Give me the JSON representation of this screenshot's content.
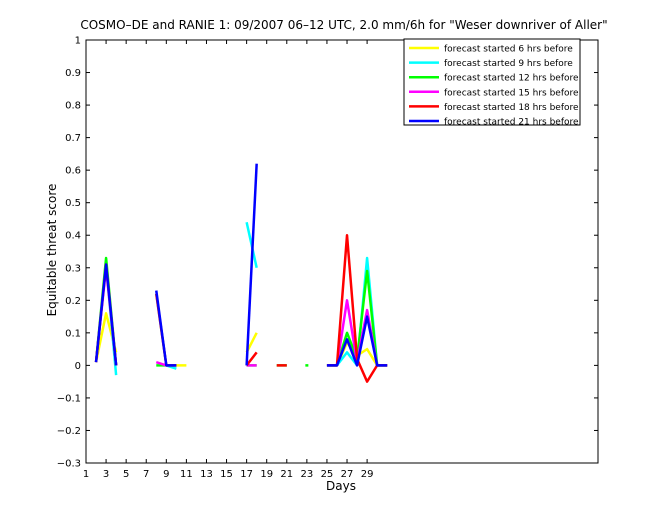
{
  "chart_data": {
    "type": "line",
    "title": "COSMO–DE and RANIE 1: 09/2007 06–12 UTC, 2.0 mm/6h for \"Weser downriver of Aller\"",
    "xlabel": "Days",
    "ylabel": "Equitable threat score",
    "xlim": [
      1,
      52
    ],
    "ylim": [
      -0.3,
      1
    ],
    "xticks": [
      1,
      3,
      5,
      7,
      9,
      11,
      13,
      15,
      17,
      19,
      21,
      23,
      25,
      27,
      29
    ],
    "xtick_labels": [
      "1",
      "3",
      "5",
      "7",
      "9",
      "11",
      "13",
      "15",
      "17",
      "19",
      "21",
      "23",
      "25",
      "27",
      "29"
    ],
    "yticks": [
      -0.3,
      -0.2,
      -0.1,
      0,
      0.1,
      0.2,
      0.3,
      0.4,
      0.5,
      0.6,
      0.7,
      0.8,
      0.9,
      1
    ],
    "ytick_labels": [
      "−0.3",
      "−0.2",
      "−0.1",
      "0",
      "0.1",
      "0.2",
      "0.3",
      "0.4",
      "0.5",
      "0.6",
      "0.7",
      "0.8",
      "0.9",
      "1"
    ],
    "grid": false,
    "legend_position": "top-right",
    "series": [
      {
        "name": "forecast started 6 hrs before",
        "color": "#ffff00",
        "segments": [
          [
            [
              2,
              0.01
            ],
            [
              3,
              0.16
            ],
            [
              4,
              0.04
            ]
          ],
          [
            [
              9,
              0.0
            ],
            [
              10,
              0.0
            ],
            [
              11,
              0.0
            ]
          ],
          [
            [
              17,
              0.04
            ],
            [
              18,
              0.1
            ]
          ],
          [
            [
              25,
              0.0
            ],
            [
              26,
              0.0
            ],
            [
              27,
              0.07
            ],
            [
              28,
              0.03
            ],
            [
              29,
              0.05
            ],
            [
              30,
              0.0
            ],
            [
              31,
              0.0
            ]
          ]
        ]
      },
      {
        "name": "forecast started 9 hrs before",
        "color": "#00ffff",
        "segments": [
          [
            [
              2,
              0.01
            ],
            [
              3,
              0.31
            ],
            [
              4,
              -0.03
            ]
          ],
          [
            [
              8,
              0.22
            ],
            [
              9,
              0.0
            ],
            [
              10,
              -0.01
            ]
          ],
          [
            [
              17,
              0.44
            ],
            [
              18,
              0.3
            ]
          ],
          [
            [
              25,
              0.0
            ],
            [
              26,
              0.0
            ],
            [
              27,
              0.04
            ],
            [
              28,
              0.0
            ],
            [
              29,
              0.33
            ],
            [
              30,
              0.0
            ],
            [
              31,
              0.0
            ]
          ]
        ]
      },
      {
        "name": "forecast started 12 hrs before",
        "color": "#00ff00",
        "segments": [
          [
            [
              2,
              0.01
            ],
            [
              3,
              0.33
            ],
            [
              4,
              0.0
            ]
          ],
          [
            [
              8,
              0.0
            ],
            [
              9,
              0.0
            ],
            [
              10,
              0.0
            ]
          ],
          [
            [
              17,
              0.0
            ],
            [
              18,
              0.0
            ]
          ],
          [
            [
              20,
              0.0
            ],
            [
              21,
              0.0
            ]
          ],
          [
            [
              23,
              0.0
            ]
          ],
          [
            [
              25,
              0.0
            ],
            [
              26,
              0.0
            ],
            [
              27,
              0.1
            ],
            [
              28,
              0.02
            ],
            [
              29,
              0.29
            ],
            [
              30,
              0.0
            ],
            [
              31,
              0.0
            ]
          ]
        ]
      },
      {
        "name": "forecast started 15 hrs before",
        "color": "#ff00ff",
        "segments": [
          [
            [
              2,
              0.01
            ],
            [
              3,
              0.3
            ],
            [
              4,
              0.0
            ]
          ],
          [
            [
              8,
              0.01
            ],
            [
              9,
              0.0
            ],
            [
              10,
              0.0
            ]
          ],
          [
            [
              17,
              0.0
            ],
            [
              18,
              0.0
            ]
          ],
          [
            [
              25,
              0.0
            ],
            [
              26,
              0.0
            ],
            [
              27,
              0.2
            ],
            [
              28,
              0.01
            ],
            [
              29,
              0.17
            ],
            [
              30,
              0.0
            ],
            [
              31,
              0.0
            ]
          ]
        ]
      },
      {
        "name": "forecast started 18 hrs before",
        "color": "#ff0000",
        "segments": [
          [
            [
              2,
              0.01
            ],
            [
              3,
              0.31
            ],
            [
              4,
              0.0
            ]
          ],
          [
            [
              8,
              0.22
            ],
            [
              9,
              0.0
            ],
            [
              10,
              0.0
            ]
          ],
          [
            [
              17,
              0.0
            ],
            [
              18,
              0.04
            ]
          ],
          [
            [
              20,
              0.0
            ],
            [
              21,
              0.0
            ]
          ],
          [
            [
              25,
              0.0
            ],
            [
              26,
              0.0
            ],
            [
              27,
              0.4
            ],
            [
              28,
              0.02
            ],
            [
              29,
              -0.05
            ],
            [
              30,
              0.0
            ],
            [
              31,
              0.0
            ]
          ]
        ]
      },
      {
        "name": "forecast started 21 hrs before",
        "color": "#0000ff",
        "segments": [
          [
            [
              2,
              0.01
            ],
            [
              3,
              0.31
            ],
            [
              4,
              0.0
            ]
          ],
          [
            [
              8,
              0.23
            ],
            [
              9,
              0.0
            ],
            [
              10,
              0.0
            ]
          ],
          [
            [
              17,
              0.0
            ],
            [
              18,
              0.62
            ]
          ],
          [
            [
              25,
              0.0
            ],
            [
              26,
              0.0
            ],
            [
              27,
              0.08
            ],
            [
              28,
              0.0
            ],
            [
              29,
              0.15
            ],
            [
              30,
              0.0
            ],
            [
              31,
              0.0
            ]
          ]
        ]
      }
    ]
  }
}
